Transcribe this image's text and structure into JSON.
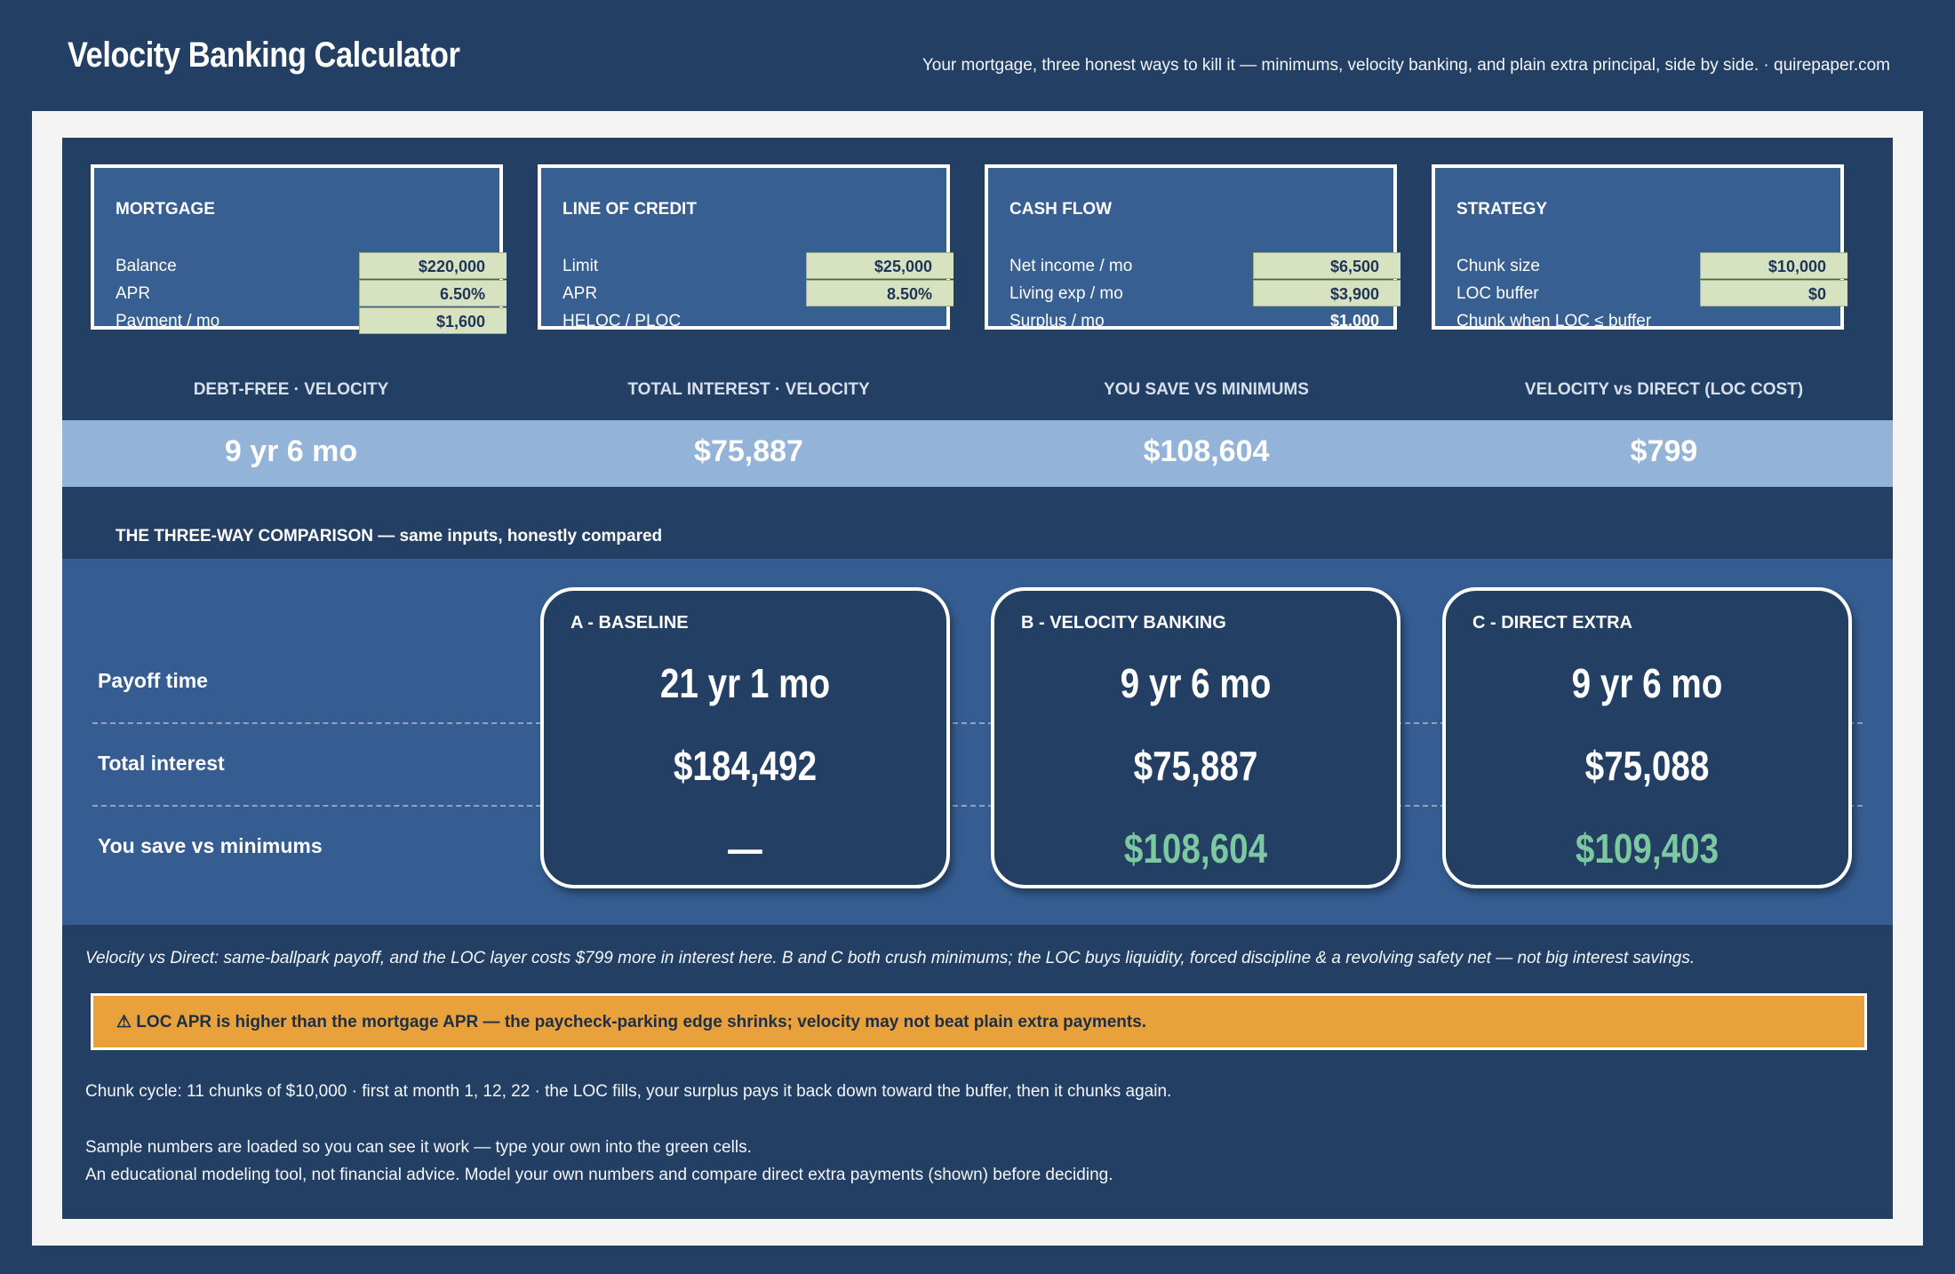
{
  "header": {
    "title": "Velocity Banking Calculator",
    "tagline": "Your mortgage, three honest ways to kill it — minimums, velocity banking, and plain extra principal, side by side.  ·  quirepaper.com"
  },
  "inputs": [
    {
      "title": "MORTGAGE",
      "rows": [
        {
          "label": "Balance",
          "value": "$220,000",
          "editable": true
        },
        {
          "label": "APR",
          "value": "6.50%",
          "editable": true
        },
        {
          "label": "Payment / mo",
          "value": "$1,600",
          "editable": true
        }
      ]
    },
    {
      "title": "LINE OF CREDIT",
      "rows": [
        {
          "label": "Limit",
          "value": "$25,000",
          "editable": true
        },
        {
          "label": "APR",
          "value": "8.50%",
          "editable": true
        },
        {
          "label": "HELOC / PLOC",
          "value": "",
          "editable": false
        }
      ]
    },
    {
      "title": "CASH FLOW",
      "rows": [
        {
          "label": "Net income / mo",
          "value": "$6,500",
          "editable": true
        },
        {
          "label": "Living exp / mo",
          "value": "$3,900",
          "editable": true
        },
        {
          "label": "Surplus / mo",
          "value": "$1,000",
          "editable": false
        }
      ]
    },
    {
      "title": "STRATEGY",
      "rows": [
        {
          "label": "Chunk size",
          "value": "$10,000",
          "editable": true
        },
        {
          "label": "LOC buffer",
          "value": "$0",
          "editable": true
        },
        {
          "label": "Chunk when LOC ≤ buffer",
          "value": "",
          "editable": false
        }
      ]
    }
  ],
  "kpis": [
    {
      "label": "DEBT-FREE · VELOCITY",
      "value": "9 yr 6 mo"
    },
    {
      "label": "TOTAL INTEREST · VELOCITY",
      "value": "$75,887"
    },
    {
      "label": "YOU SAVE VS MINIMUMS",
      "value": "$108,604"
    },
    {
      "label": "VELOCITY vs DIRECT (LOC COST)",
      "value": "$799"
    }
  ],
  "comparison": {
    "heading": "THE THREE-WAY COMPARISON  —  same inputs, honestly compared",
    "metrics": [
      "Payoff time",
      "Total interest",
      "You save vs minimums"
    ],
    "scenarios": [
      {
        "title": "A - BASELINE",
        "payoff": "21 yr 1 mo",
        "interest": "$184,492",
        "savings": "—"
      },
      {
        "title": "B - VELOCITY BANKING",
        "payoff": "9 yr 6 mo",
        "interest": "$75,887",
        "savings": "$108,604"
      },
      {
        "title": "C - DIRECT EXTRA",
        "payoff": "9 yr 6 mo",
        "interest": "$75,088",
        "savings": "$109,403"
      }
    ]
  },
  "note": "Velocity vs Direct: same-ballpark payoff, and the LOC layer costs $799 more in interest here. B and C both crush minimums; the LOC buys liquidity, forced discipline & a revolving safety net — not big interest savings.",
  "warning": "⚠  LOC APR is higher than the mortgage APR — the paycheck-parking edge shrinks; velocity may not beat plain extra payments.",
  "footer": {
    "chunk_cycle": "Chunk cycle:  11 chunks of $10,000  ·  first at month 1, 12, 22  ·  the LOC fills, your surplus pays it back down toward the buffer, then it chunks again.",
    "sample_note": "Sample numbers are loaded so you can see it work — type your own into the green cells.",
    "disclaimer": "An educational modeling tool, not financial advice. Model your own numbers and compare direct extra payments (shown) before deciding."
  },
  "colors": {
    "background": "#233f63",
    "panel": "#385f92",
    "input_cell": "#d7e3c0",
    "kpi_band": "#94b3d9",
    "savings_green": "#7cc8a0",
    "warning": "#e9a23b"
  }
}
